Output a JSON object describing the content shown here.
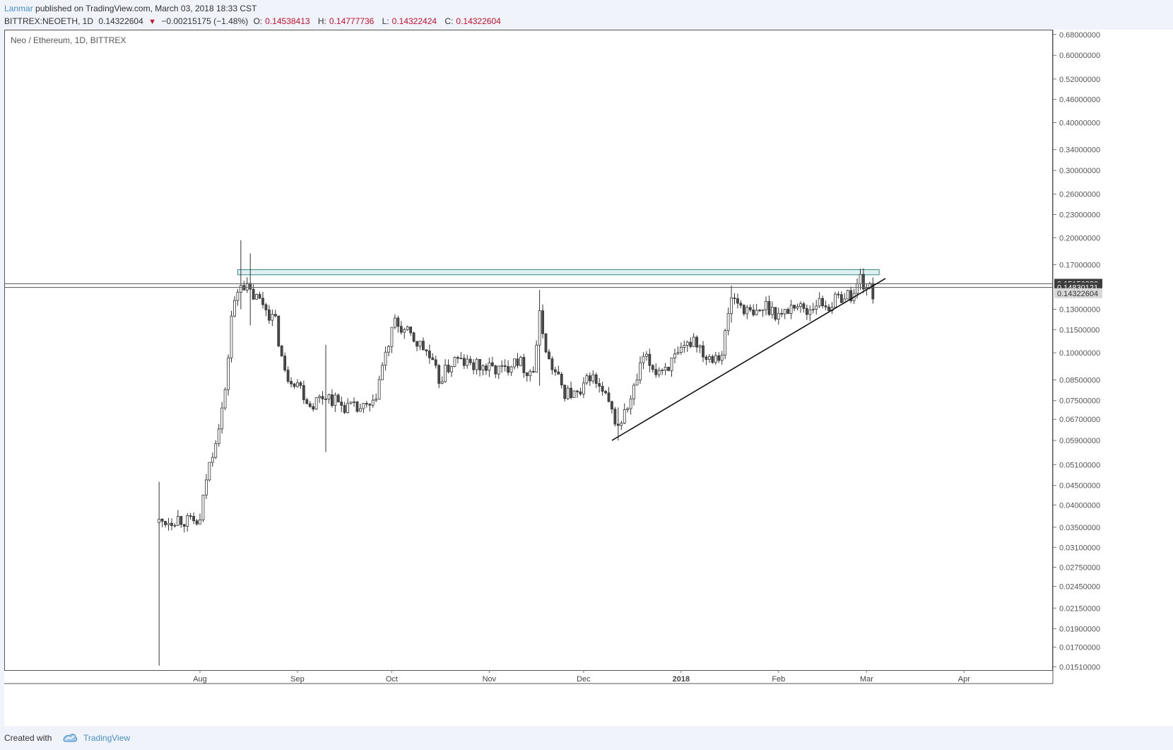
{
  "header": {
    "author": "Lanmar",
    "published_text": "published on TradingView.com, March 03, 2018 18:33 CST",
    "symbol": "BITTREX:NEOETH, 1D",
    "last": "0.14322604",
    "change_arrow": "▼",
    "change": "−0.00215175 (−1.48%)",
    "o_label": "O:",
    "o_value": "0.14538413",
    "h_label": "H:",
    "h_value": "0.14777736",
    "l_label": "L:",
    "l_value": "0.14322424",
    "c_label": "C:",
    "c_value": "0.14322604"
  },
  "footer": {
    "created_with": "Created with",
    "brand": "TradingView"
  },
  "colors": {
    "accent": "#4a90c8",
    "down": "#c8102e",
    "candle_up": "#ffffff",
    "candle_down": "#4a4a4a",
    "rect_fill": "#dff0f0",
    "rect_stroke": "#3a8a8a"
  },
  "chart_data": {
    "type": "candlestick",
    "title": "Neo / Ethereum, 1D, BITTREX",
    "price_scale": "log",
    "ylim": [
      0.0148,
      0.7
    ],
    "price_ticks": [
      "0.68000000",
      "0.60000000",
      "0.52000000",
      "0.46000000",
      "0.40000000",
      "0.34000000",
      "0.30000000",
      "0.26000000",
      "0.23000000",
      "0.20000000",
      "0.17000000",
      "0.13000000",
      "0.11500000",
      "0.10000000",
      "0.08500000",
      "0.07500000",
      "0.06700000",
      "0.05900000",
      "0.05100000",
      "0.04500000",
      "0.04000000",
      "0.03500000",
      "0.03100000",
      "0.02750000",
      "0.02450000",
      "0.02150000",
      "0.01900000",
      "0.01700000",
      "0.01510000"
    ],
    "price_labels": [
      {
        "value": "0.15156828",
        "price": 0.15156828,
        "style": "dark"
      },
      {
        "value": "0.14830121",
        "price": 0.14830121,
        "style": "dark"
      },
      {
        "value": "0.14322604",
        "price": 0.14322604,
        "style": "light"
      }
    ],
    "time_labels": [
      {
        "label": "Aug",
        "date": "2017-08-01",
        "bold": false
      },
      {
        "label": "Sep",
        "date": "2017-09-01",
        "bold": false
      },
      {
        "label": "Oct",
        "date": "2017-10-01",
        "bold": false
      },
      {
        "label": "Nov",
        "date": "2017-11-01",
        "bold": false
      },
      {
        "label": "Dec",
        "date": "2017-12-01",
        "bold": false
      },
      {
        "label": "2018",
        "date": "2018-01-01",
        "bold": true
      },
      {
        "label": "Feb",
        "date": "2018-02-01",
        "bold": false
      },
      {
        "label": "Mar",
        "date": "2018-03-01",
        "bold": false
      },
      {
        "label": "Apr",
        "date": "2018-04-01",
        "bold": false
      }
    ],
    "anchors": [
      {
        "date": "2017-07-19",
        "price": 0.036
      },
      {
        "date": "2017-07-25",
        "price": 0.037
      },
      {
        "date": "2017-07-29",
        "price": 0.036
      },
      {
        "date": "2017-08-01",
        "price": 0.036
      },
      {
        "date": "2017-08-03",
        "price": 0.047
      },
      {
        "date": "2017-08-06",
        "price": 0.06
      },
      {
        "date": "2017-08-09",
        "price": 0.078
      },
      {
        "date": "2017-08-11",
        "price": 0.125
      },
      {
        "date": "2017-08-14",
        "price": 0.155
      },
      {
        "date": "2017-08-17",
        "price": 0.143
      },
      {
        "date": "2017-08-21",
        "price": 0.135
      },
      {
        "date": "2017-08-25",
        "price": 0.12
      },
      {
        "date": "2017-08-28",
        "price": 0.088
      },
      {
        "date": "2017-09-01",
        "price": 0.084
      },
      {
        "date": "2017-09-05",
        "price": 0.073
      },
      {
        "date": "2017-09-10",
        "price": 0.078
      },
      {
        "date": "2017-09-15",
        "price": 0.073
      },
      {
        "date": "2017-09-20",
        "price": 0.071
      },
      {
        "date": "2017-09-25",
        "price": 0.072
      },
      {
        "date": "2017-09-28",
        "price": 0.092
      },
      {
        "date": "2017-10-02",
        "price": 0.12
      },
      {
        "date": "2017-10-06",
        "price": 0.112
      },
      {
        "date": "2017-10-12",
        "price": 0.101
      },
      {
        "date": "2017-10-16",
        "price": 0.085
      },
      {
        "date": "2017-10-21",
        "price": 0.096
      },
      {
        "date": "2017-10-26",
        "price": 0.093
      },
      {
        "date": "2017-11-01",
        "price": 0.091
      },
      {
        "date": "2017-11-06",
        "price": 0.09
      },
      {
        "date": "2017-11-09",
        "price": 0.098
      },
      {
        "date": "2017-11-13",
        "price": 0.09
      },
      {
        "date": "2017-11-15",
        "price": 0.09
      },
      {
        "date": "2017-11-17",
        "price": 0.124
      },
      {
        "date": "2017-11-20",
        "price": 0.095
      },
      {
        "date": "2017-11-25",
        "price": 0.079
      },
      {
        "date": "2017-11-30",
        "price": 0.077
      },
      {
        "date": "2017-12-03",
        "price": 0.088
      },
      {
        "date": "2017-12-08",
        "price": 0.076
      },
      {
        "date": "2017-12-12",
        "price": 0.064
      },
      {
        "date": "2017-12-16",
        "price": 0.075
      },
      {
        "date": "2017-12-20",
        "price": 0.097
      },
      {
        "date": "2017-12-24",
        "price": 0.09
      },
      {
        "date": "2017-12-28",
        "price": 0.093
      },
      {
        "date": "2018-01-01",
        "price": 0.099
      },
      {
        "date": "2018-01-05",
        "price": 0.11
      },
      {
        "date": "2018-01-09",
        "price": 0.098
      },
      {
        "date": "2018-01-14",
        "price": 0.1
      },
      {
        "date": "2018-01-17",
        "price": 0.14
      },
      {
        "date": "2018-01-21",
        "price": 0.131
      },
      {
        "date": "2018-01-24",
        "price": 0.124
      },
      {
        "date": "2018-01-28",
        "price": 0.133
      },
      {
        "date": "2018-02-02",
        "price": 0.125
      },
      {
        "date": "2018-02-06",
        "price": 0.135
      },
      {
        "date": "2018-02-10",
        "price": 0.128
      },
      {
        "date": "2018-02-13",
        "price": 0.136
      },
      {
        "date": "2018-02-17",
        "price": 0.133
      },
      {
        "date": "2018-02-21",
        "price": 0.141
      },
      {
        "date": "2018-02-25",
        "price": 0.142
      },
      {
        "date": "2018-02-27",
        "price": 0.158
      },
      {
        "date": "2018-02-28",
        "price": 0.152
      },
      {
        "date": "2018-03-02",
        "price": 0.146
      },
      {
        "date": "2018-03-03",
        "price": 0.143
      }
    ],
    "spikes": [
      {
        "date": "2017-07-19",
        "low": 0.0152,
        "high": 0.046
      },
      {
        "date": "2017-08-14",
        "low": 0.13,
        "high": 0.197
      },
      {
        "date": "2017-08-17",
        "low": 0.118,
        "high": 0.182
      },
      {
        "date": "2017-09-10",
        "low": 0.055,
        "high": 0.105
      },
      {
        "date": "2017-11-17",
        "low": 0.082,
        "high": 0.146
      },
      {
        "date": "2017-12-12",
        "low": 0.059,
        "high": 0.072
      },
      {
        "date": "2018-01-17",
        "low": 0.12,
        "high": 0.15
      },
      {
        "date": "2018-02-27",
        "low": 0.146,
        "high": 0.166
      }
    ],
    "resistance_zone": {
      "from": "2017-08-13",
      "to": "2018-03-05",
      "low": 0.16,
      "high": 0.165
    },
    "horizontal_lines": [
      0.15156828,
      0.14830121
    ],
    "trendline": {
      "from": {
        "date": "2017-12-10",
        "price": 0.059
      },
      "to": {
        "date": "2018-03-07",
        "price": 0.1565
      }
    }
  }
}
